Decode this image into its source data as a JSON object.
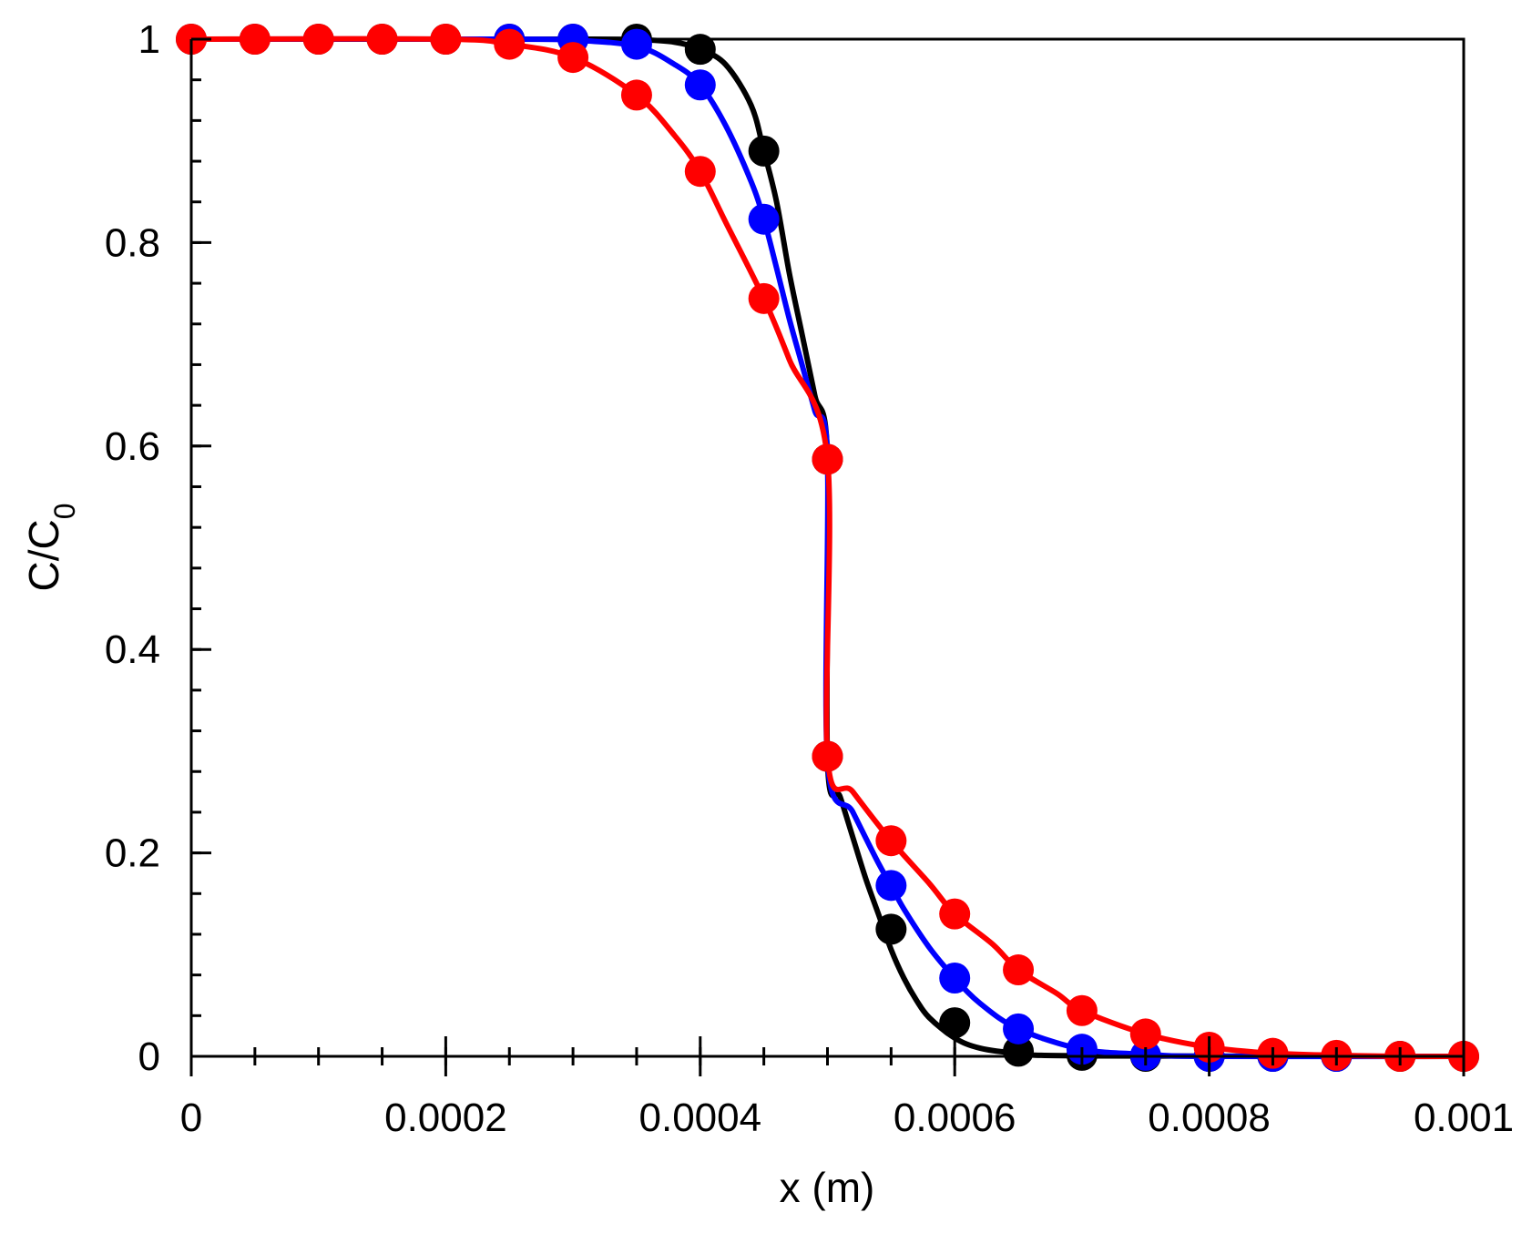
{
  "chart_data": {
    "type": "line",
    "title": "",
    "xlabel": "x (m)",
    "ylabel_main": "C/C",
    "ylabel_sub": "0",
    "xlim": [
      0,
      0.001
    ],
    "ylim": [
      0,
      1
    ],
    "x_ticks": [
      0,
      0.0002,
      0.0004,
      0.0006,
      0.0008,
      0.001
    ],
    "x_tick_labels": [
      "0",
      "0.0002",
      "0.0004",
      "0.0006",
      "0.0008",
      "0.001"
    ],
    "y_ticks": [
      0,
      0.2,
      0.4,
      0.6,
      0.8,
      1
    ],
    "y_tick_labels": [
      "0",
      "0.2",
      "0.4",
      "0.6",
      "0.8",
      "1"
    ],
    "x_minor_step": 5e-05,
    "y_minor_step": 0.04,
    "grid": false,
    "legend": "none",
    "series": [
      {
        "color": "#000000",
        "line": [
          [
            0,
            1
          ],
          [
            0.0003,
            1
          ],
          [
            0.00035,
            0.9995
          ],
          [
            0.00038,
            0.997
          ],
          [
            0.0004,
            0.99
          ],
          [
            0.00042,
            0.975
          ],
          [
            0.00044,
            0.935
          ],
          [
            0.00045,
            0.89
          ],
          [
            0.00046,
            0.84
          ],
          [
            0.00047,
            0.77
          ],
          [
            0.00048,
            0.71
          ],
          [
            0.00049,
            0.65
          ],
          [
            0.0005,
            0.59
          ],
          [
            0.0005,
            0.29
          ],
          [
            0.00051,
            0.255
          ],
          [
            0.00052,
            0.215
          ],
          [
            0.00053,
            0.175
          ],
          [
            0.00054,
            0.14
          ],
          [
            0.00055,
            0.105
          ],
          [
            0.00056,
            0.077
          ],
          [
            0.00057,
            0.055
          ],
          [
            0.00058,
            0.038
          ],
          [
            0.0006,
            0.018
          ],
          [
            0.00062,
            0.008
          ],
          [
            0.00065,
            0.003
          ],
          [
            0.0007,
            0.0005
          ],
          [
            0.001,
            0
          ]
        ],
        "markers": [
          [
            0,
            1
          ],
          [
            5e-05,
            1
          ],
          [
            0.0001,
            1
          ],
          [
            0.00015,
            1
          ],
          [
            0.0002,
            1
          ],
          [
            0.00025,
            1
          ],
          [
            0.0003,
            1
          ],
          [
            0.00035,
            1
          ],
          [
            0.0004,
            0.99
          ],
          [
            0.00045,
            0.89
          ],
          [
            0.0005,
            0.587
          ],
          [
            0.0005,
            0.295
          ],
          [
            0.00055,
            0.125
          ],
          [
            0.0006,
            0.033
          ],
          [
            0.00065,
            0.005
          ],
          [
            0.0007,
            0.001
          ],
          [
            0.00075,
            0
          ],
          [
            0.0008,
            0
          ],
          [
            0.00085,
            0
          ],
          [
            0.0009,
            0
          ],
          [
            0.00095,
            0
          ],
          [
            0.001,
            0
          ]
        ]
      },
      {
        "color": "#0000ff",
        "line": [
          [
            0,
            1
          ],
          [
            0.00025,
            1
          ],
          [
            0.0003,
            0.999
          ],
          [
            0.00035,
            0.993
          ],
          [
            0.00038,
            0.975
          ],
          [
            0.0004,
            0.955
          ],
          [
            0.00042,
            0.915
          ],
          [
            0.00044,
            0.86
          ],
          [
            0.00045,
            0.823
          ],
          [
            0.00046,
            0.775
          ],
          [
            0.00047,
            0.725
          ],
          [
            0.00048,
            0.68
          ],
          [
            0.00049,
            0.635
          ],
          [
            0.0005,
            0.59
          ],
          [
            0.0005,
            0.29
          ],
          [
            0.00052,
            0.24
          ],
          [
            0.00054,
            0.19
          ],
          [
            0.00055,
            0.168
          ],
          [
            0.00056,
            0.145
          ],
          [
            0.00058,
            0.107
          ],
          [
            0.0006,
            0.077
          ],
          [
            0.00062,
            0.052
          ],
          [
            0.00065,
            0.027
          ],
          [
            0.0007,
            0.007
          ],
          [
            0.00075,
            0.002
          ],
          [
            0.0008,
            0
          ],
          [
            0.001,
            0
          ]
        ],
        "markers": [
          [
            0.00025,
            1
          ],
          [
            0.0003,
            1
          ],
          [
            0.00035,
            0.995
          ],
          [
            0.0004,
            0.955
          ],
          [
            0.00045,
            0.823
          ],
          [
            0.00055,
            0.168
          ],
          [
            0.0006,
            0.077
          ],
          [
            0.00065,
            0.027
          ],
          [
            0.0007,
            0.007
          ],
          [
            0.00075,
            0.001
          ],
          [
            0.0008,
            0
          ],
          [
            0.00085,
            0
          ],
          [
            0.0009,
            0
          ]
        ]
      },
      {
        "color": "#ff0000",
        "line": [
          [
            0,
            1
          ],
          [
            0.0002,
            1
          ],
          [
            0.00025,
            0.995
          ],
          [
            0.0003,
            0.982
          ],
          [
            0.00035,
            0.945
          ],
          [
            0.00038,
            0.905
          ],
          [
            0.0004,
            0.87
          ],
          [
            0.00042,
            0.82
          ],
          [
            0.00045,
            0.745
          ],
          [
            0.00047,
            0.685
          ],
          [
            0.0005,
            0.587
          ],
          [
            0.0005,
            0.295
          ],
          [
            0.00052,
            0.26
          ],
          [
            0.00055,
            0.212
          ],
          [
            0.00058,
            0.17
          ],
          [
            0.0006,
            0.14
          ],
          [
            0.00063,
            0.11
          ],
          [
            0.00065,
            0.085
          ],
          [
            0.00068,
            0.062
          ],
          [
            0.0007,
            0.045
          ],
          [
            0.00075,
            0.022
          ],
          [
            0.0008,
            0.009
          ],
          [
            0.00085,
            0.003
          ],
          [
            0.0009,
            0.001
          ],
          [
            0.00095,
            0
          ],
          [
            0.001,
            0
          ]
        ],
        "markers": [
          [
            0,
            1
          ],
          [
            5e-05,
            1
          ],
          [
            0.0001,
            1
          ],
          [
            0.00015,
            1
          ],
          [
            0.0002,
            1
          ],
          [
            0.00025,
            0.995
          ],
          [
            0.0003,
            0.982
          ],
          [
            0.00035,
            0.945
          ],
          [
            0.0004,
            0.87
          ],
          [
            0.00045,
            0.745
          ],
          [
            0.0005,
            0.587
          ],
          [
            0.0005,
            0.295
          ],
          [
            0.00055,
            0.212
          ],
          [
            0.0006,
            0.14
          ],
          [
            0.00065,
            0.085
          ],
          [
            0.0007,
            0.045
          ],
          [
            0.00075,
            0.022
          ],
          [
            0.0008,
            0.009
          ],
          [
            0.00085,
            0.003
          ],
          [
            0.0009,
            0.001
          ],
          [
            0.00095,
            0
          ],
          [
            0.001,
            0
          ]
        ]
      }
    ]
  }
}
